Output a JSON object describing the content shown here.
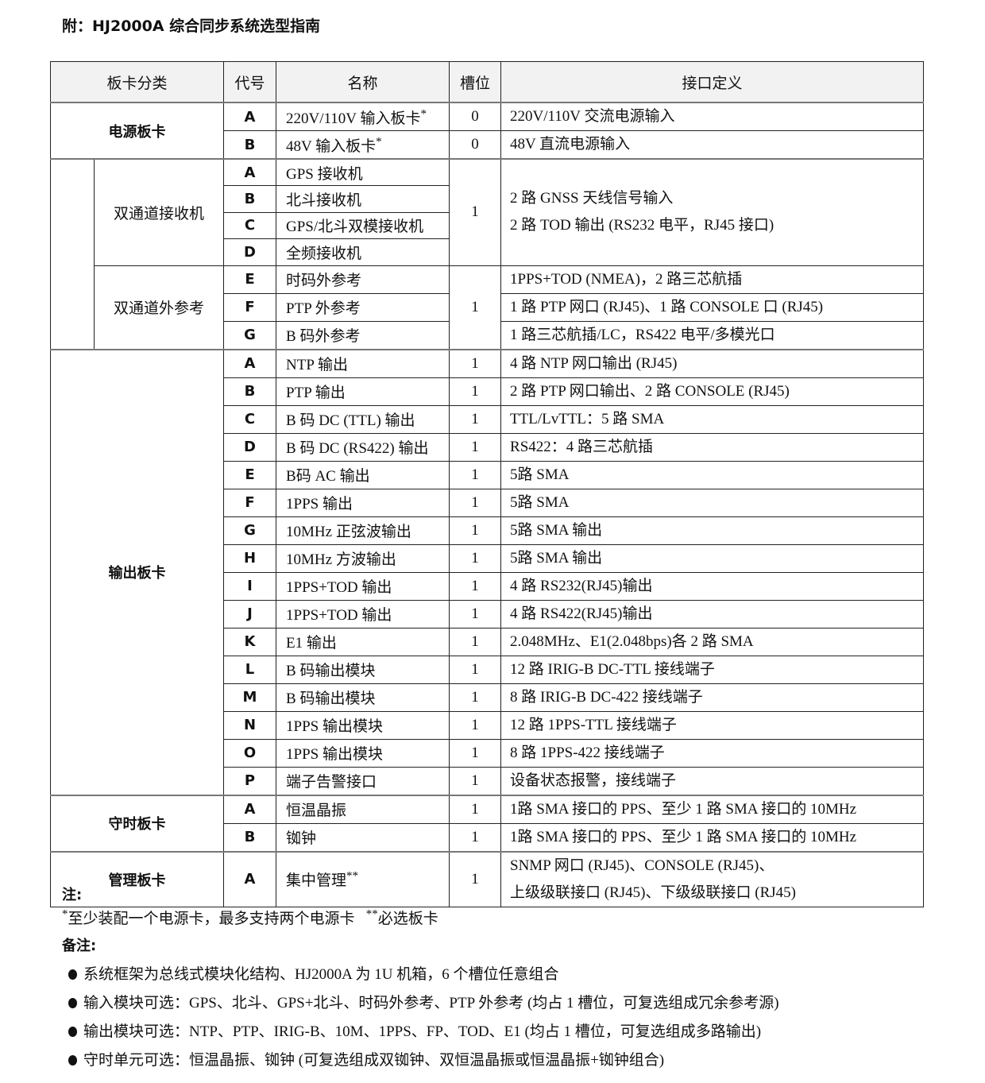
{
  "title": "附：HJ2000A 综合同步系统选型指南",
  "table": {
    "headers": [
      "板卡分类",
      "代号",
      "名称",
      "槽位",
      "接口定义"
    ],
    "groups": [
      {
        "category": "电源板卡",
        "bold": true,
        "rows": [
          {
            "code": "A",
            "name": "220V/110V 输入板卡",
            "sup": "*",
            "slot": "0",
            "def": [
              "220V/110V 交流电源输入"
            ]
          },
          {
            "code": "B",
            "name": "48V 输入板卡",
            "sup": "*",
            "slot": "0",
            "def": [
              "48V 直流电源输入"
            ]
          }
        ]
      },
      {
        "category": "",
        "subgroups": [
          {
            "category": "双通道接收机",
            "slot": "1",
            "def": [
              "2 路 GNSS 天线信号输入",
              "2 路 TOD 输出 (RS232 电平，RJ45 接口)"
            ],
            "rows": [
              {
                "code": "A",
                "name": "GPS 接收机"
              },
              {
                "code": "B",
                "name": "北斗接收机"
              },
              {
                "code": "C",
                "name": "GPS/北斗双模接收机"
              },
              {
                "code": "D",
                "name": "全频接收机"
              }
            ]
          },
          {
            "category": "双通道外参考",
            "slot": "1",
            "rows": [
              {
                "code": "E",
                "name": "时码外参考",
                "def": [
                  "1PPS+TOD (NMEA)，2 路三芯航插"
                ]
              },
              {
                "code": "F",
                "name": "PTP 外参考",
                "def": [
                  "1 路 PTP 网口 (RJ45)、1 路 CONSOLE 口 (RJ45)"
                ]
              },
              {
                "code": "G",
                "name": "B 码外参考",
                "def": [
                  "1 路三芯航插/LC，RS422 电平/多模光口"
                ]
              }
            ]
          }
        ]
      },
      {
        "category": "输出板卡",
        "bold": true,
        "rows": [
          {
            "code": "A",
            "name": "NTP 输出",
            "slot": "1",
            "def": [
              "4 路 NTP 网口输出 (RJ45)"
            ]
          },
          {
            "code": "B",
            "name": "PTP 输出",
            "slot": "1",
            "def": [
              "2 路 PTP 网口输出、2 路 CONSOLE (RJ45)"
            ]
          },
          {
            "code": "C",
            "name": "B 码 DC (TTL) 输出",
            "slot": "1",
            "def": [
              "TTL/LvTTL：5 路 SMA"
            ]
          },
          {
            "code": "D",
            "name": "B 码 DC (RS422) 输出",
            "slot": "1",
            "def": [
              "RS422：4 路三芯航插"
            ]
          },
          {
            "code": "E",
            "name": "B码 AC 输出",
            "slot": "1",
            "def": [
              "5路 SMA"
            ]
          },
          {
            "code": "F",
            "name": "1PPS 输出",
            "slot": "1",
            "def": [
              "5路 SMA"
            ]
          },
          {
            "code": "G",
            "name": "10MHz 正弦波输出",
            "slot": "1",
            "def": [
              "5路 SMA 输出"
            ]
          },
          {
            "code": "H",
            "name": "10MHz 方波输出",
            "slot": "1",
            "def": [
              "5路 SMA 输出"
            ]
          },
          {
            "code": "I",
            "name": "1PPS+TOD 输出",
            "slot": "1",
            "def": [
              "4 路 RS232(RJ45)输出"
            ]
          },
          {
            "code": "J",
            "name": "1PPS+TOD 输出",
            "slot": "1",
            "def": [
              "4 路 RS422(RJ45)输出"
            ]
          },
          {
            "code": "K",
            "name": "E1 输出",
            "slot": "1",
            "def": [
              "2.048MHz、E1(2.048bps)各 2 路 SMA"
            ]
          },
          {
            "code": "L",
            "name": "B 码输出模块",
            "slot": "1",
            "def": [
              "12 路 IRIG-B DC-TTL 接线端子"
            ]
          },
          {
            "code": "M",
            "name": "B 码输出模块",
            "slot": "1",
            "def": [
              "8 路 IRIG-B DC-422 接线端子"
            ]
          },
          {
            "code": "N",
            "name": "1PPS 输出模块",
            "slot": "1",
            "def": [
              "12 路 1PPS-TTL 接线端子"
            ]
          },
          {
            "code": "O",
            "name": "1PPS 输出模块",
            "slot": "1",
            "def": [
              "8 路 1PPS-422 接线端子"
            ]
          },
          {
            "code": "P",
            "name": "端子告警接口",
            "slot": "1",
            "def": [
              "设备状态报警，接线端子"
            ]
          }
        ]
      },
      {
        "category": "守时板卡",
        "bold": true,
        "rows": [
          {
            "code": "A",
            "name": "恒温晶振",
            "slot": "1",
            "def": [
              "1路 SMA 接口的 PPS、至少 1 路 SMA 接口的 10MHz"
            ]
          },
          {
            "code": "B",
            "name": "铷钟",
            "slot": "1",
            "def": [
              "1路 SMA 接口的 PPS、至少 1 路 SMA 接口的 10MHz"
            ]
          }
        ]
      },
      {
        "category": "管理板卡",
        "bold": true,
        "rows": [
          {
            "code": "A",
            "name": "集中管理",
            "sup": "**",
            "slot": "1",
            "def": [
              "SNMP 网口 (RJ45)、CONSOLE (RJ45)、",
              "上级级联接口 (RJ45)、下级级联接口 (RJ45)"
            ]
          }
        ]
      }
    ]
  },
  "notes": {
    "heading": "注:",
    "star1": "*",
    "text1": "至少装配一个电源卡，最多支持两个电源卡",
    "star2": "**",
    "text2": "必选板卡"
  },
  "remarks": {
    "heading": "备注:",
    "items": [
      "系统框架为总线式模块化结构、HJ2000A 为 1U 机箱，6 个槽位任意组合",
      "输入模块可选：GPS、北斗、GPS+北斗、时码外参考、PTP 外参考 (均占 1 槽位，可复选组成冗余参考源)",
      "输出模块可选：NTP、PTP、IRIG-B、10M、1PPS、FP、TOD、E1 (均占 1 槽位，可复选组成多路输出)",
      "守时单元可选：恒温晶振、铷钟 (可复选组成双铷钟、双恒温晶振或恒温晶振+铷钟组合)"
    ]
  }
}
